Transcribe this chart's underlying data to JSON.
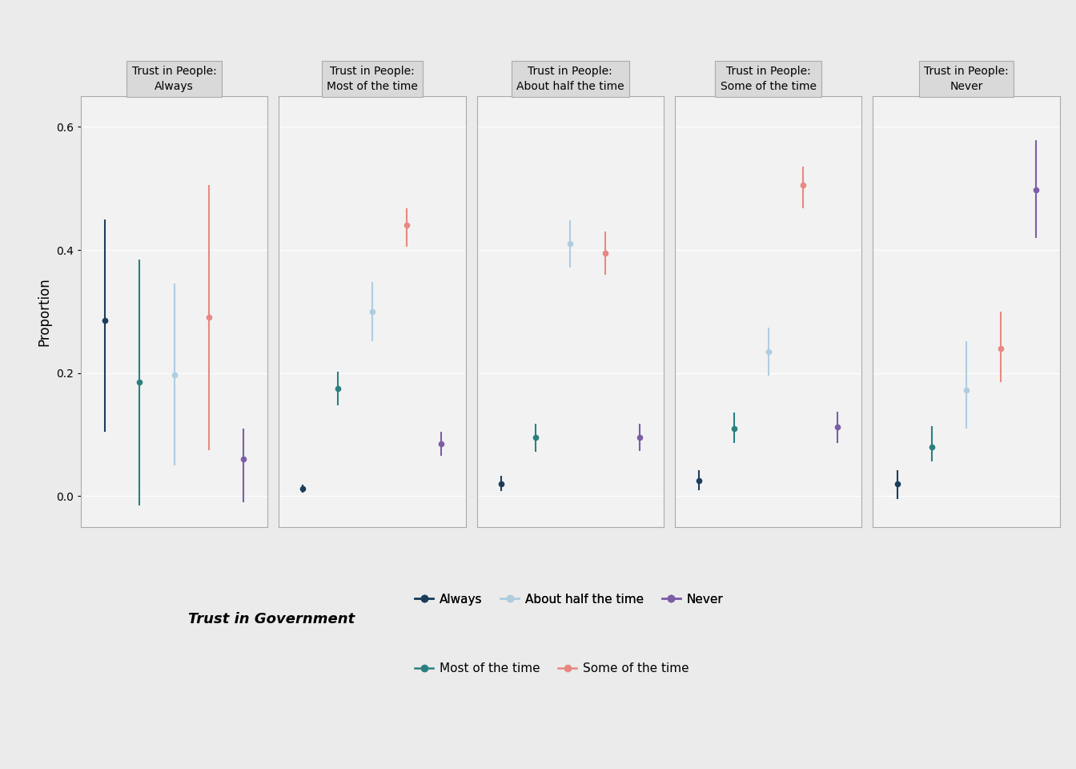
{
  "panels": [
    "Trust in People:\nAlways",
    "Trust in People:\nMost of the time",
    "Trust in People:\nAbout half the time",
    "Trust in People:\nSome of the time",
    "Trust in People:\nNever"
  ],
  "gov_levels": [
    "Always",
    "Most of the time",
    "About half the time",
    "Some of the time",
    "Never"
  ],
  "colors": {
    "Always": "#1B3D5C",
    "Most of the time": "#2A8080",
    "About half the time": "#B0CDE0",
    "Some of the time": "#E88880",
    "Never": "#7B5EA7"
  },
  "data": {
    "Trust in People:\nAlways": {
      "Always": {
        "mean": 0.285,
        "lo": 0.105,
        "hi": 0.45
      },
      "Most of the time": {
        "mean": 0.185,
        "lo": -0.015,
        "hi": 0.385
      },
      "About half the time": {
        "mean": 0.197,
        "lo": 0.05,
        "hi": 0.345
      },
      "Some of the time": {
        "mean": 0.29,
        "lo": 0.075,
        "hi": 0.505
      },
      "Never": {
        "mean": 0.06,
        "lo": -0.01,
        "hi": 0.11
      }
    },
    "Trust in People:\nMost of the time": {
      "Always": {
        "mean": 0.012,
        "lo": 0.005,
        "hi": 0.019
      },
      "Most of the time": {
        "mean": 0.175,
        "lo": 0.148,
        "hi": 0.202
      },
      "About half the time": {
        "mean": 0.3,
        "lo": 0.252,
        "hi": 0.348
      },
      "Some of the time": {
        "mean": 0.44,
        "lo": 0.405,
        "hi": 0.468
      },
      "Never": {
        "mean": 0.085,
        "lo": 0.066,
        "hi": 0.104
      }
    },
    "Trust in People:\nAbout half the time": {
      "Always": {
        "mean": 0.02,
        "lo": 0.008,
        "hi": 0.033
      },
      "Most of the time": {
        "mean": 0.095,
        "lo": 0.072,
        "hi": 0.118
      },
      "About half the time": {
        "mean": 0.41,
        "lo": 0.372,
        "hi": 0.448
      },
      "Some of the time": {
        "mean": 0.395,
        "lo": 0.36,
        "hi": 0.43
      },
      "Never": {
        "mean": 0.095,
        "lo": 0.073,
        "hi": 0.117
      }
    },
    "Trust in People:\nSome of the time": {
      "Always": {
        "mean": 0.025,
        "lo": 0.01,
        "hi": 0.042
      },
      "Most of the time": {
        "mean": 0.11,
        "lo": 0.086,
        "hi": 0.136
      },
      "About half the time": {
        "mean": 0.235,
        "lo": 0.196,
        "hi": 0.274
      },
      "Some of the time": {
        "mean": 0.505,
        "lo": 0.468,
        "hi": 0.535
      },
      "Never": {
        "mean": 0.112,
        "lo": 0.086,
        "hi": 0.137
      }
    },
    "Trust in People:\nNever": {
      "Always": {
        "mean": 0.02,
        "lo": -0.005,
        "hi": 0.042
      },
      "Most of the time": {
        "mean": 0.08,
        "lo": 0.056,
        "hi": 0.114
      },
      "About half the time": {
        "mean": 0.172,
        "lo": 0.11,
        "hi": 0.252
      },
      "Some of the time": {
        "mean": 0.24,
        "lo": 0.185,
        "hi": 0.3
      },
      "Never": {
        "mean": 0.498,
        "lo": 0.42,
        "hi": 0.578
      }
    }
  },
  "x_positions": {
    "Always": 1,
    "Most of the time": 2,
    "About half the time": 3,
    "Some of the time": 4,
    "Never": 5
  },
  "ylim": [
    -0.05,
    0.65
  ],
  "yticks": [
    0.0,
    0.2,
    0.4,
    0.6
  ],
  "ylabel": "Proportion",
  "legend_title": "Trust in Government",
  "background_color": "#EBEBEB",
  "panel_bg": "#F2F2F2",
  "grid_color": "#FFFFFF",
  "facet_bg": "#D9D9D9",
  "facet_border": "#AAAAAA",
  "legend_row1": [
    "Always",
    "About half the time",
    "Never"
  ],
  "legend_row2": [
    "Most of the time",
    "Some of the time"
  ]
}
